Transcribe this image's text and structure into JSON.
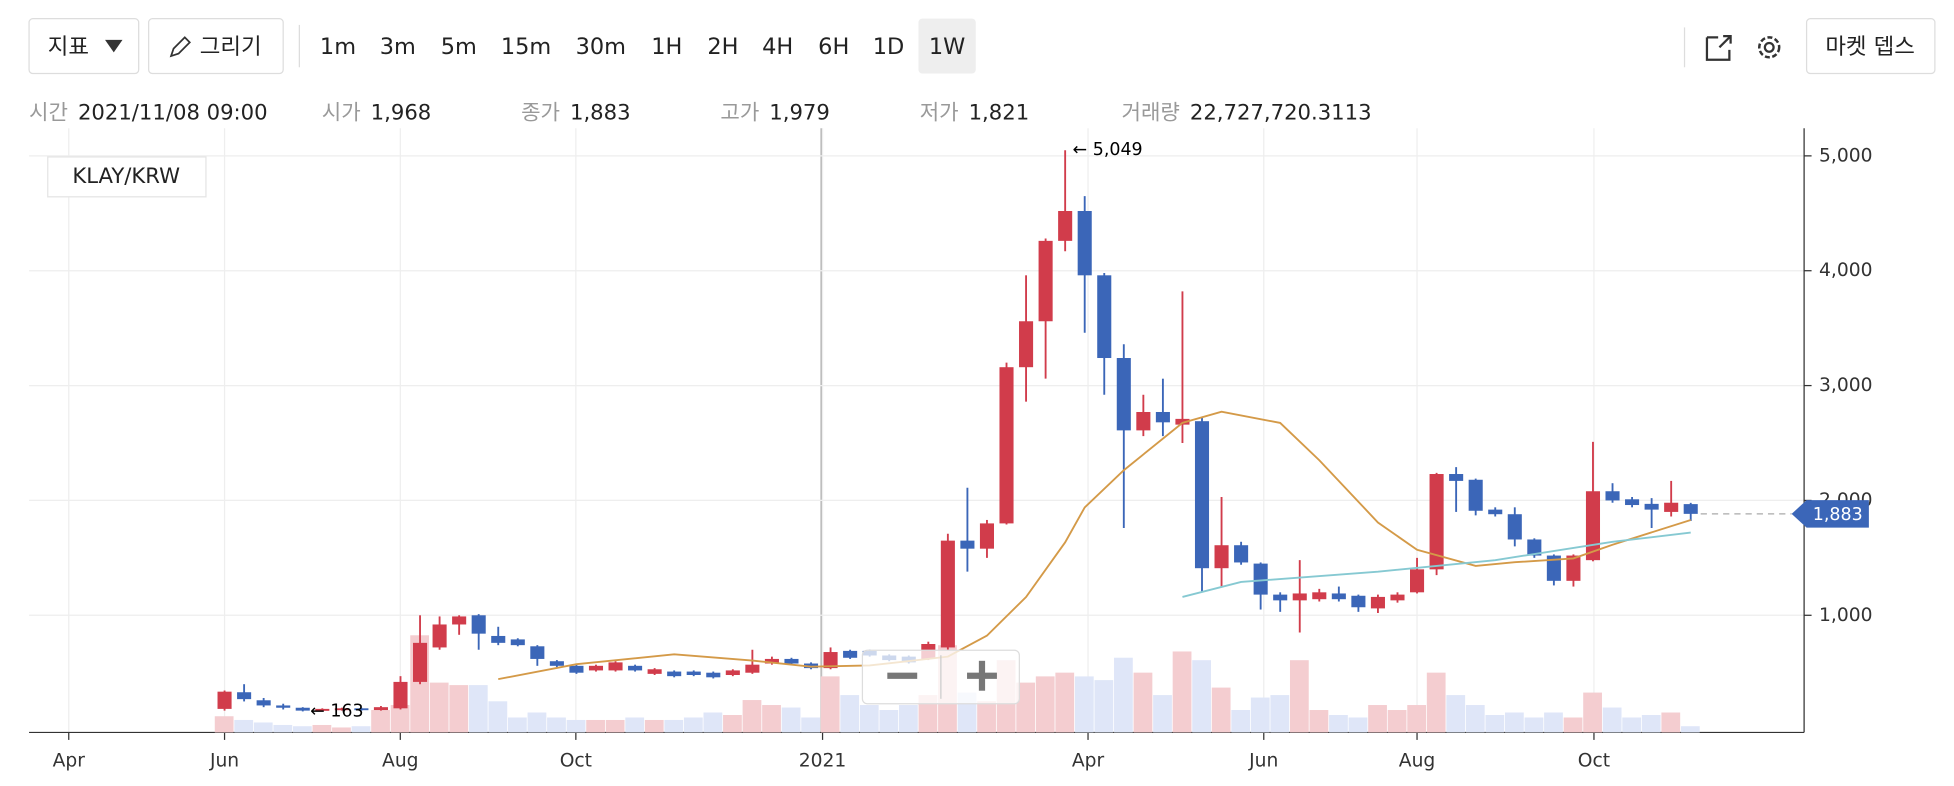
{
  "toolbar": {
    "indicator": "지표",
    "draw": "그리기",
    "intervals": [
      "1m",
      "3m",
      "5m",
      "15m",
      "30m",
      "1H",
      "2H",
      "4H",
      "6H",
      "1D",
      "1W"
    ],
    "selected": 10,
    "market_depth": "마켓 뎁스"
  },
  "info": [
    {
      "label": "시간",
      "value": "2021/11/08 09:00"
    },
    {
      "label": "시가",
      "value": "1,968"
    },
    {
      "label": "종가",
      "value": "1,883"
    },
    {
      "label": "고가",
      "value": "1,979"
    },
    {
      "label": "저가",
      "value": "1,821"
    },
    {
      "label": "거래량",
      "value": "22,727,720.3113"
    }
  ],
  "chart_data": {
    "type": "candlestick",
    "title": "KLAY/KRW",
    "up_color": "#d13c4b",
    "down_color": "#3b66b8",
    "volume_up_color": "#f4cdd0",
    "volume_down_color": "#dfe6f8",
    "x": [
      0,
      1,
      2,
      3,
      4,
      5,
      6,
      7,
      8,
      9,
      10,
      11,
      12,
      13,
      14,
      15,
      16,
      17,
      18,
      19,
      20,
      21,
      22,
      23,
      24,
      25,
      26,
      27,
      28,
      29,
      30,
      31,
      32,
      33,
      34,
      35,
      36,
      37,
      38,
      39,
      40,
      41,
      42,
      43,
      44,
      45,
      46,
      47,
      48,
      49,
      50,
      51,
      52,
      53,
      54,
      55,
      56,
      57,
      58,
      59,
      60,
      61,
      62,
      63,
      64,
      65,
      66,
      67,
      68,
      69,
      70,
      71,
      72,
      73,
      74,
      75
    ],
    "open": [
      185,
      330,
      260,
      215,
      195,
      168,
      175,
      190,
      175,
      190,
      420,
      720,
      920,
      1000,
      820,
      790,
      730,
      600,
      560,
      520,
      520,
      560,
      490,
      510,
      510,
      500,
      480,
      500,
      580,
      620,
      580,
      540,
      690,
      690,
      650,
      640,
      620,
      720,
      1650,
      1580,
      1800,
      3160,
      3560,
      4260,
      4520,
      3960,
      3240,
      2610,
      2770,
      2660,
      2690,
      1410,
      1610,
      1450,
      1180,
      1130,
      1140,
      1190,
      1170,
      1060,
      1130,
      1200,
      1400,
      2230,
      2180,
      1920,
      1880,
      1660,
      1520,
      1300,
      1480,
      2080,
      2010,
      1970,
      1900,
      1968
    ],
    "high": [
      345,
      400,
      280,
      230,
      200,
      190,
      195,
      195,
      210,
      470,
      1000,
      990,
      1000,
      1010,
      900,
      800,
      740,
      610,
      570,
      570,
      600,
      570,
      540,
      520,
      520,
      510,
      530,
      700,
      640,
      630,
      590,
      720,
      700,
      700,
      660,
      650,
      770,
      1710,
      2110,
      1830,
      3200,
      3960,
      4280,
      5049,
      4650,
      3980,
      3360,
      2920,
      3060,
      3820,
      2720,
      2030,
      1640,
      1460,
      1200,
      1480,
      1230,
      1250,
      1180,
      1180,
      1200,
      1500,
      2240,
      2290,
      2190,
      1940,
      1940,
      1670,
      1530,
      1530,
      2510,
      2150,
      2030,
      2020,
      2170,
      1979
    ],
    "low": [
      170,
      250,
      200,
      180,
      163,
      165,
      170,
      170,
      170,
      180,
      400,
      700,
      830,
      700,
      740,
      730,
      560,
      550,
      490,
      510,
      510,
      510,
      480,
      460,
      470,
      450,
      470,
      490,
      570,
      570,
      530,
      530,
      620,
      640,
      600,
      580,
      610,
      700,
      1380,
      1500,
      1790,
      2860,
      3060,
      4170,
      3460,
      2920,
      1760,
      2560,
      2560,
      2500,
      1200,
      1250,
      1440,
      1050,
      1030,
      850,
      1120,
      1120,
      1030,
      1020,
      1110,
      1190,
      1350,
      1900,
      1870,
      1860,
      1600,
      1500,
      1260,
      1250,
      1470,
      1980,
      1940,
      1760,
      1860,
      1821
    ],
    "close": [
      335,
      270,
      215,
      195,
      170,
      185,
      190,
      175,
      200,
      420,
      760,
      920,
      990,
      840,
      760,
      740,
      620,
      560,
      500,
      560,
      590,
      520,
      530,
      470,
      480,
      460,
      520,
      570,
      620,
      580,
      540,
      680,
      630,
      650,
      610,
      590,
      750,
      1650,
      1580,
      1800,
      3160,
      3560,
      4260,
      4520,
      3960,
      3240,
      2610,
      2770,
      2680,
      2710,
      1410,
      1610,
      1460,
      1180,
      1130,
      1190,
      1200,
      1140,
      1070,
      1160,
      1180,
      1400,
      2230,
      2170,
      1910,
      1880,
      1660,
      1520,
      1300,
      1520,
      2080,
      2000,
      1960,
      1920,
      1980,
      1883
    ],
    "volume": [
      13,
      10,
      8,
      6,
      5,
      6,
      4,
      5,
      18,
      22,
      78,
      40,
      38,
      38,
      25,
      12,
      16,
      12,
      10,
      10,
      10,
      12,
      10,
      10,
      12,
      16,
      14,
      26,
      22,
      20,
      12,
      45,
      30,
      22,
      18,
      22,
      30,
      70,
      32,
      25,
      58,
      40,
      45,
      48,
      45,
      42,
      60,
      48,
      30,
      65,
      58,
      36,
      18,
      28,
      30,
      58,
      18,
      14,
      12,
      22,
      18,
      22,
      48,
      30,
      22,
      14,
      16,
      12,
      16,
      12,
      32,
      20,
      12,
      14,
      16,
      5
    ],
    "vlim": [
      0,
      485
    ],
    "series": [
      {
        "color": "#d49a48",
        "x": [
          14,
          18,
          23,
          27,
          30,
          33,
          37,
          39,
          41,
          43,
          44,
          46,
          49,
          51,
          54,
          56,
          59,
          61,
          64,
          66,
          69,
          71,
          75
        ],
        "values": [
          444,
          574,
          660,
          606,
          552,
          563,
          640,
          823,
          1159,
          1635,
          1939,
          2263,
          2675,
          2772,
          2675,
          2350,
          1808,
          1570,
          1430,
          1462,
          1495,
          1614,
          1830
        ]
      },
      {
        "color": "#86c9d2",
        "x": [
          49,
          52,
          59,
          65,
          71,
          75
        ],
        "values": [
          1160,
          1290,
          1380,
          1480,
          1640,
          1720
        ]
      }
    ],
    "annotations": [
      {
        "x": 43,
        "y": 5049,
        "text": "← 5,049"
      },
      {
        "x": 4,
        "y": 163,
        "text": "← 163"
      }
    ],
    "last_price": {
      "value": 1883,
      "label": "1,883"
    },
    "xlim": [
      -10,
      80.8
    ],
    "xticks": [
      {
        "value": -7.97,
        "label": "Apr"
      },
      {
        "value": 0,
        "label": "Jun"
      },
      {
        "value": 8.99,
        "label": "Aug"
      },
      {
        "value": 17.97,
        "label": "Oct"
      },
      {
        "value": 30.59,
        "label": "2021"
      },
      {
        "value": 44.17,
        "label": "Apr"
      },
      {
        "value": 53.16,
        "label": "Jun"
      },
      {
        "value": 61.0,
        "label": "Aug"
      },
      {
        "value": 70.05,
        "label": "Oct"
      }
    ],
    "ylim": [
      -20,
      5240
    ],
    "yticks": [
      {
        "value": 1000,
        "label": "1,000"
      },
      {
        "value": 2000,
        "label": "2,000"
      },
      {
        "value": 3000,
        "label": "3,000"
      },
      {
        "value": 4000,
        "label": "4,000"
      },
      {
        "value": 5000,
        "label": "5,000"
      }
    ],
    "grid": true
  }
}
